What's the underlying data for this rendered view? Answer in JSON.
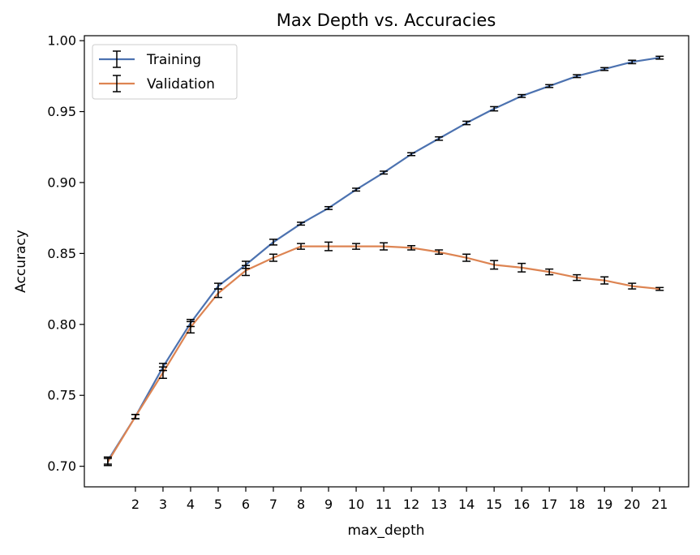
{
  "chart_data": {
    "type": "line",
    "title": "Max Depth vs. Accuracies",
    "xlabel": "max_depth",
    "ylabel": "Accuracy",
    "x": [
      1,
      2,
      3,
      4,
      5,
      6,
      7,
      8,
      9,
      10,
      11,
      12,
      13,
      14,
      15,
      16,
      17,
      18,
      19,
      20,
      21
    ],
    "xticks": [
      "2",
      "3",
      "4",
      "5",
      "6",
      "7",
      "8",
      "9",
      "10",
      "11",
      "12",
      "13",
      "14",
      "15",
      "16",
      "17",
      "18",
      "19",
      "20",
      "21"
    ],
    "yticks": [
      "0.70",
      "0.75",
      "0.80",
      "0.85",
      "0.90",
      "0.95",
      "1.00"
    ],
    "xlim": [
      0.15,
      22.05
    ],
    "ylim": [
      0.6855,
      1.0035
    ],
    "grid": false,
    "legend_position": "top-left",
    "error_bar_color": "#000000",
    "series": [
      {
        "name": "Training",
        "color": "#4c72b0",
        "values": [
          0.704,
          0.735,
          0.77,
          0.801,
          0.827,
          0.842,
          0.858,
          0.871,
          0.882,
          0.895,
          0.907,
          0.92,
          0.931,
          0.942,
          0.952,
          0.961,
          0.968,
          0.975,
          0.98,
          0.985,
          0.988
        ],
        "errors": [
          0.0025,
          0.0015,
          0.0025,
          0.0025,
          0.002,
          0.0025,
          0.002,
          0.001,
          0.001,
          0.001,
          0.001,
          0.001,
          0.0012,
          0.0012,
          0.0015,
          0.001,
          0.001,
          0.001,
          0.001,
          0.0012,
          0.001
        ]
      },
      {
        "name": "Validation",
        "color": "#dd8452",
        "values": [
          0.703,
          0.735,
          0.766,
          0.798,
          0.822,
          0.838,
          0.847,
          0.855,
          0.855,
          0.855,
          0.855,
          0.854,
          0.851,
          0.847,
          0.842,
          0.84,
          0.837,
          0.833,
          0.831,
          0.827,
          0.825
        ],
        "errors": [
          0.0025,
          0.0015,
          0.004,
          0.004,
          0.003,
          0.0035,
          0.0025,
          0.002,
          0.003,
          0.002,
          0.0025,
          0.0015,
          0.0015,
          0.0025,
          0.003,
          0.003,
          0.002,
          0.002,
          0.0025,
          0.002,
          0.001
        ]
      }
    ]
  }
}
